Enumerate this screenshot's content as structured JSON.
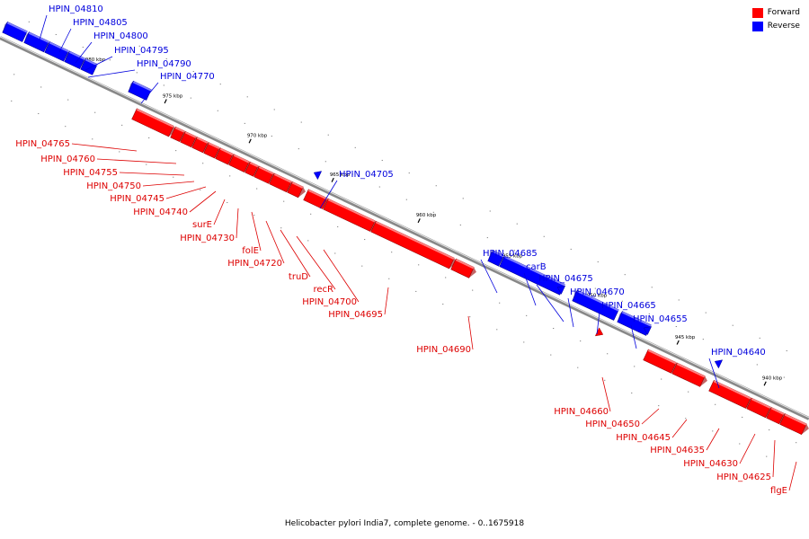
{
  "caption": "Helicobacter pylori India7, complete genome. - 0..1675918",
  "legend": {
    "forward_label": "Forward",
    "reverse_label": "Reverse",
    "forward_color": "#ff0000",
    "reverse_color": "#0000ff"
  },
  "kbp_ticks": [
    {
      "label": "980 kbp"
    },
    {
      "label": "975 kbp"
    },
    {
      "label": "970 kbp"
    },
    {
      "label": "965 kbp"
    },
    {
      "label": "960 kbp"
    },
    {
      "label": "955 kbp"
    },
    {
      "label": "950 kbp"
    },
    {
      "label": "945 kbp"
    },
    {
      "label": "940 kbp"
    }
  ],
  "genes": [
    {
      "name": "HPIN_04810",
      "strand": "reverse"
    },
    {
      "name": "HPIN_04805",
      "strand": "reverse"
    },
    {
      "name": "HPIN_04800",
      "strand": "reverse"
    },
    {
      "name": "HPIN_04795",
      "strand": "reverse"
    },
    {
      "name": "HPIN_04790",
      "strand": "reverse"
    },
    {
      "name": "HPIN_04770",
      "strand": "reverse"
    },
    {
      "name": "HPIN_04765",
      "strand": "forward"
    },
    {
      "name": "HPIN_04760",
      "strand": "forward"
    },
    {
      "name": "HPIN_04755",
      "strand": "forward"
    },
    {
      "name": "HPIN_04750",
      "strand": "forward"
    },
    {
      "name": "HPIN_04745",
      "strand": "forward"
    },
    {
      "name": "HPIN_04740",
      "strand": "forward"
    },
    {
      "name": "surE",
      "strand": "forward"
    },
    {
      "name": "HPIN_04730",
      "strand": "forward"
    },
    {
      "name": "folE",
      "strand": "forward"
    },
    {
      "name": "HPIN_04720",
      "strand": "forward"
    },
    {
      "name": "truD",
      "strand": "forward"
    },
    {
      "name": "recR",
      "strand": "forward"
    },
    {
      "name": "HPIN_04700",
      "strand": "forward"
    },
    {
      "name": "HPIN_04695",
      "strand": "forward"
    },
    {
      "name": "HPIN_04705",
      "strand": "reverse"
    },
    {
      "name": "HPIN_04690",
      "strand": "forward"
    },
    {
      "name": "HPIN_04685",
      "strand": "reverse"
    },
    {
      "name": "carB",
      "strand": "reverse"
    },
    {
      "name": "HPIN_04675",
      "strand": "reverse"
    },
    {
      "name": "HPIN_04670",
      "strand": "reverse"
    },
    {
      "name": "HPIN_04665",
      "strand": "reverse"
    },
    {
      "name": "HPIN_04655",
      "strand": "reverse"
    },
    {
      "name": "HPIN_04640",
      "strand": "reverse"
    },
    {
      "name": "HPIN_04660",
      "strand": "forward"
    },
    {
      "name": "HPIN_04650",
      "strand": "forward"
    },
    {
      "name": "HPIN_04645",
      "strand": "forward"
    },
    {
      "name": "HPIN_04635",
      "strand": "forward"
    },
    {
      "name": "HPIN_04630",
      "strand": "forward"
    },
    {
      "name": "HPIN_04625",
      "strand": "forward"
    },
    {
      "name": "flgE",
      "strand": "forward"
    }
  ]
}
